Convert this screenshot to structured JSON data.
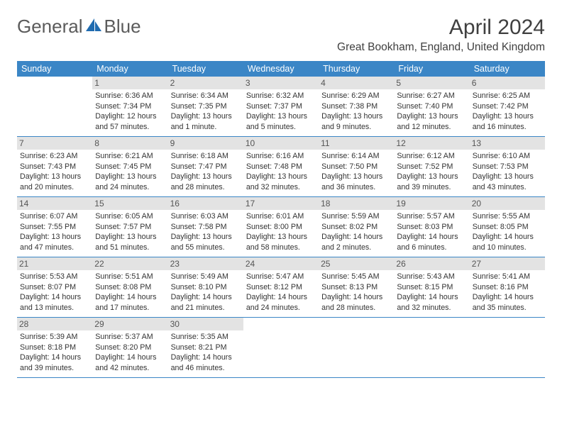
{
  "brand": {
    "part1": "General",
    "part2": "Blue"
  },
  "title": "April 2024",
  "location": "Great Bookham, England, United Kingdom",
  "colors": {
    "header_bg": "#3b86c6",
    "header_text": "#ffffff",
    "daynum_bg": "#e3e3e3",
    "border": "#3b86c6",
    "text": "#333333",
    "logo_blue": "#1f6bb0"
  },
  "weekdays": [
    "Sunday",
    "Monday",
    "Tuesday",
    "Wednesday",
    "Thursday",
    "Friday",
    "Saturday"
  ],
  "weeks": [
    [
      {
        "n": "",
        "sr": "",
        "ss": "",
        "d1": "",
        "d2": "",
        "empty": true
      },
      {
        "n": "1",
        "sr": "Sunrise: 6:36 AM",
        "ss": "Sunset: 7:34 PM",
        "d1": "Daylight: 12 hours",
        "d2": "and 57 minutes."
      },
      {
        "n": "2",
        "sr": "Sunrise: 6:34 AM",
        "ss": "Sunset: 7:35 PM",
        "d1": "Daylight: 13 hours",
        "d2": "and 1 minute."
      },
      {
        "n": "3",
        "sr": "Sunrise: 6:32 AM",
        "ss": "Sunset: 7:37 PM",
        "d1": "Daylight: 13 hours",
        "d2": "and 5 minutes."
      },
      {
        "n": "4",
        "sr": "Sunrise: 6:29 AM",
        "ss": "Sunset: 7:38 PM",
        "d1": "Daylight: 13 hours",
        "d2": "and 9 minutes."
      },
      {
        "n": "5",
        "sr": "Sunrise: 6:27 AM",
        "ss": "Sunset: 7:40 PM",
        "d1": "Daylight: 13 hours",
        "d2": "and 12 minutes."
      },
      {
        "n": "6",
        "sr": "Sunrise: 6:25 AM",
        "ss": "Sunset: 7:42 PM",
        "d1": "Daylight: 13 hours",
        "d2": "and 16 minutes."
      }
    ],
    [
      {
        "n": "7",
        "sr": "Sunrise: 6:23 AM",
        "ss": "Sunset: 7:43 PM",
        "d1": "Daylight: 13 hours",
        "d2": "and 20 minutes."
      },
      {
        "n": "8",
        "sr": "Sunrise: 6:21 AM",
        "ss": "Sunset: 7:45 PM",
        "d1": "Daylight: 13 hours",
        "d2": "and 24 minutes."
      },
      {
        "n": "9",
        "sr": "Sunrise: 6:18 AM",
        "ss": "Sunset: 7:47 PM",
        "d1": "Daylight: 13 hours",
        "d2": "and 28 minutes."
      },
      {
        "n": "10",
        "sr": "Sunrise: 6:16 AM",
        "ss": "Sunset: 7:48 PM",
        "d1": "Daylight: 13 hours",
        "d2": "and 32 minutes."
      },
      {
        "n": "11",
        "sr": "Sunrise: 6:14 AM",
        "ss": "Sunset: 7:50 PM",
        "d1": "Daylight: 13 hours",
        "d2": "and 36 minutes."
      },
      {
        "n": "12",
        "sr": "Sunrise: 6:12 AM",
        "ss": "Sunset: 7:52 PM",
        "d1": "Daylight: 13 hours",
        "d2": "and 39 minutes."
      },
      {
        "n": "13",
        "sr": "Sunrise: 6:10 AM",
        "ss": "Sunset: 7:53 PM",
        "d1": "Daylight: 13 hours",
        "d2": "and 43 minutes."
      }
    ],
    [
      {
        "n": "14",
        "sr": "Sunrise: 6:07 AM",
        "ss": "Sunset: 7:55 PM",
        "d1": "Daylight: 13 hours",
        "d2": "and 47 minutes."
      },
      {
        "n": "15",
        "sr": "Sunrise: 6:05 AM",
        "ss": "Sunset: 7:57 PM",
        "d1": "Daylight: 13 hours",
        "d2": "and 51 minutes."
      },
      {
        "n": "16",
        "sr": "Sunrise: 6:03 AM",
        "ss": "Sunset: 7:58 PM",
        "d1": "Daylight: 13 hours",
        "d2": "and 55 minutes."
      },
      {
        "n": "17",
        "sr": "Sunrise: 6:01 AM",
        "ss": "Sunset: 8:00 PM",
        "d1": "Daylight: 13 hours",
        "d2": "and 58 minutes."
      },
      {
        "n": "18",
        "sr": "Sunrise: 5:59 AM",
        "ss": "Sunset: 8:02 PM",
        "d1": "Daylight: 14 hours",
        "d2": "and 2 minutes."
      },
      {
        "n": "19",
        "sr": "Sunrise: 5:57 AM",
        "ss": "Sunset: 8:03 PM",
        "d1": "Daylight: 14 hours",
        "d2": "and 6 minutes."
      },
      {
        "n": "20",
        "sr": "Sunrise: 5:55 AM",
        "ss": "Sunset: 8:05 PM",
        "d1": "Daylight: 14 hours",
        "d2": "and 10 minutes."
      }
    ],
    [
      {
        "n": "21",
        "sr": "Sunrise: 5:53 AM",
        "ss": "Sunset: 8:07 PM",
        "d1": "Daylight: 14 hours",
        "d2": "and 13 minutes."
      },
      {
        "n": "22",
        "sr": "Sunrise: 5:51 AM",
        "ss": "Sunset: 8:08 PM",
        "d1": "Daylight: 14 hours",
        "d2": "and 17 minutes."
      },
      {
        "n": "23",
        "sr": "Sunrise: 5:49 AM",
        "ss": "Sunset: 8:10 PM",
        "d1": "Daylight: 14 hours",
        "d2": "and 21 minutes."
      },
      {
        "n": "24",
        "sr": "Sunrise: 5:47 AM",
        "ss": "Sunset: 8:12 PM",
        "d1": "Daylight: 14 hours",
        "d2": "and 24 minutes."
      },
      {
        "n": "25",
        "sr": "Sunrise: 5:45 AM",
        "ss": "Sunset: 8:13 PM",
        "d1": "Daylight: 14 hours",
        "d2": "and 28 minutes."
      },
      {
        "n": "26",
        "sr": "Sunrise: 5:43 AM",
        "ss": "Sunset: 8:15 PM",
        "d1": "Daylight: 14 hours",
        "d2": "and 32 minutes."
      },
      {
        "n": "27",
        "sr": "Sunrise: 5:41 AM",
        "ss": "Sunset: 8:16 PM",
        "d1": "Daylight: 14 hours",
        "d2": "and 35 minutes."
      }
    ],
    [
      {
        "n": "28",
        "sr": "Sunrise: 5:39 AM",
        "ss": "Sunset: 8:18 PM",
        "d1": "Daylight: 14 hours",
        "d2": "and 39 minutes."
      },
      {
        "n": "29",
        "sr": "Sunrise: 5:37 AM",
        "ss": "Sunset: 8:20 PM",
        "d1": "Daylight: 14 hours",
        "d2": "and 42 minutes."
      },
      {
        "n": "30",
        "sr": "Sunrise: 5:35 AM",
        "ss": "Sunset: 8:21 PM",
        "d1": "Daylight: 14 hours",
        "d2": "and 46 minutes."
      },
      {
        "n": "",
        "sr": "",
        "ss": "",
        "d1": "",
        "d2": "",
        "empty": true
      },
      {
        "n": "",
        "sr": "",
        "ss": "",
        "d1": "",
        "d2": "",
        "empty": true
      },
      {
        "n": "",
        "sr": "",
        "ss": "",
        "d1": "",
        "d2": "",
        "empty": true
      },
      {
        "n": "",
        "sr": "",
        "ss": "",
        "d1": "",
        "d2": "",
        "empty": true
      }
    ]
  ]
}
